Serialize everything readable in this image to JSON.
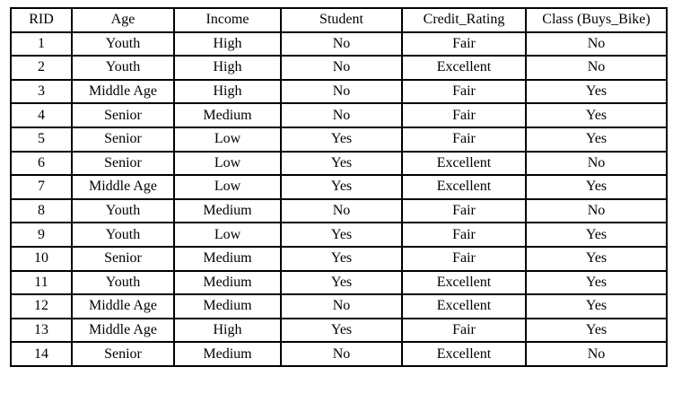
{
  "table": {
    "columns": [
      "RID",
      "Age",
      "Income",
      "Student",
      "Credit_Rating",
      "Class (Buys_Bike)"
    ],
    "rows": [
      [
        "1",
        "Youth",
        "High",
        "No",
        "Fair",
        "No"
      ],
      [
        "2",
        "Youth",
        "High",
        "No",
        "Excellent",
        "No"
      ],
      [
        "3",
        "Middle Age",
        "High",
        "No",
        "Fair",
        "Yes"
      ],
      [
        "4",
        "Senior",
        "Medium",
        "No",
        "Fair",
        "Yes"
      ],
      [
        "5",
        "Senior",
        "Low",
        "Yes",
        "Fair",
        "Yes"
      ],
      [
        "6",
        "Senior",
        "Low",
        "Yes",
        "Excellent",
        "No"
      ],
      [
        "7",
        "Middle Age",
        "Low",
        "Yes",
        "Excellent",
        "Yes"
      ],
      [
        "8",
        "Youth",
        "Medium",
        "No",
        "Fair",
        "No"
      ],
      [
        "9",
        "Youth",
        "Low",
        "Yes",
        "Fair",
        "Yes"
      ],
      [
        "10",
        "Senior",
        "Medium",
        "Yes",
        "Fair",
        "Yes"
      ],
      [
        "11",
        "Youth",
        "Medium",
        "Yes",
        "Excellent",
        "Yes"
      ],
      [
        "12",
        "Middle Age",
        "Medium",
        "No",
        "Excellent",
        "Yes"
      ],
      [
        "13",
        "Middle Age",
        "High",
        "Yes",
        "Fair",
        "Yes"
      ],
      [
        "14",
        "Senior",
        "Medium",
        "No",
        "Excellent",
        "No"
      ]
    ]
  },
  "colors": {
    "border": "#000000",
    "text": "#000000",
    "background": "#ffffff"
  }
}
